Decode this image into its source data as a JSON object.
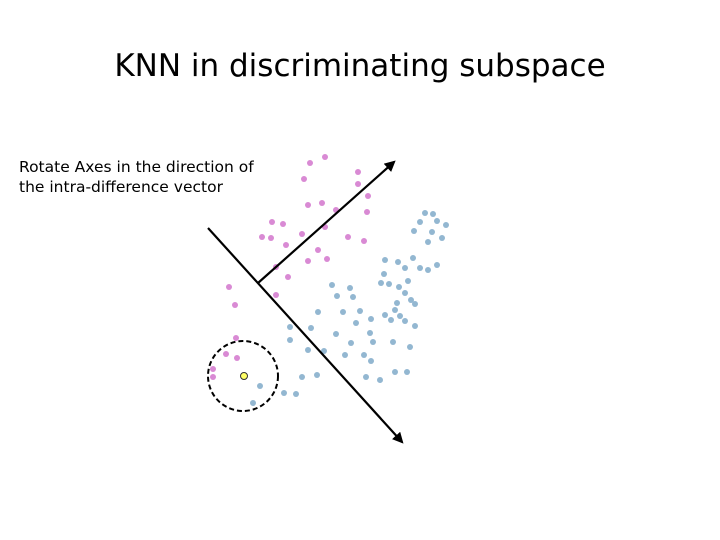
{
  "title": "KNN in discriminating subspace",
  "note": {
    "lines": [
      "Rotate Axes in the direction of",
      "the intra-difference vector"
    ]
  }
}
